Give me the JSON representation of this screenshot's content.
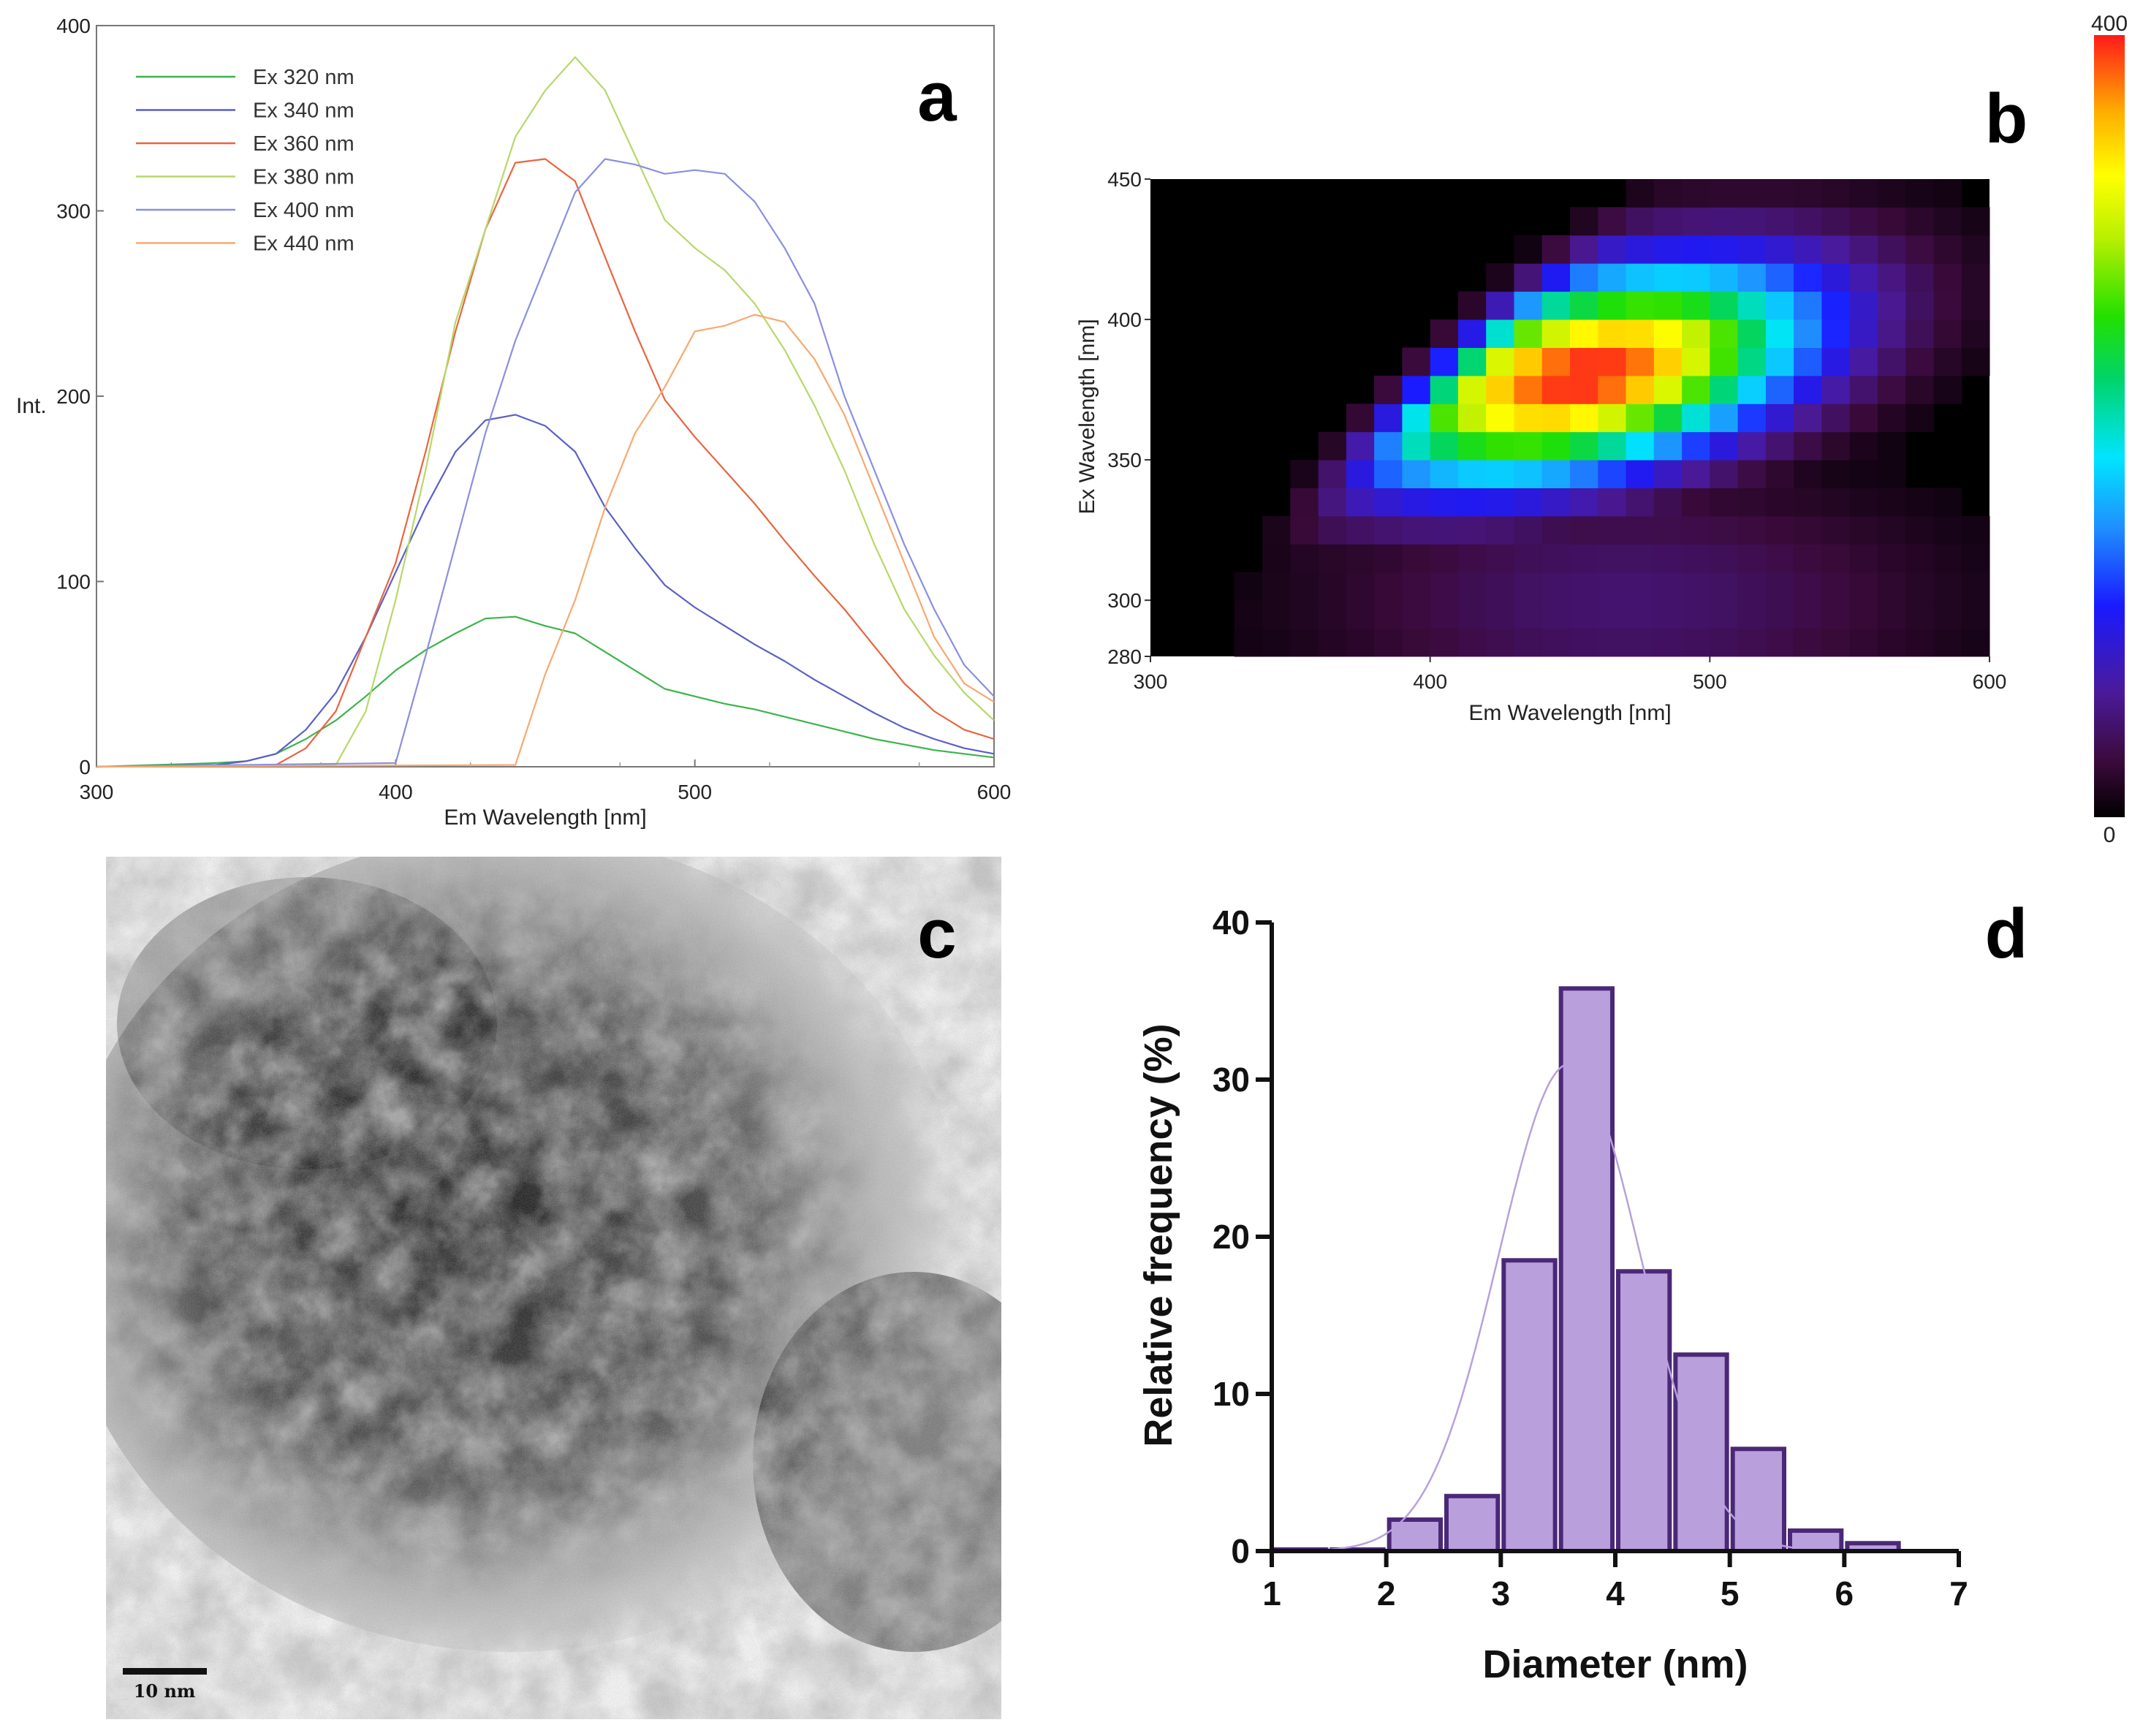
{
  "panels": {
    "a": "a",
    "b": "b",
    "c": "c",
    "d": "d"
  },
  "chart_data": [
    {
      "id": "a",
      "type": "line",
      "title": "",
      "xlabel": "Em Wavelength [nm]",
      "ylabel": "Int.",
      "xlim": [
        300,
        600
      ],
      "ylim": [
        0,
        400
      ],
      "xticks": [
        300,
        400,
        500,
        600
      ],
      "yticks": [
        0,
        100,
        200,
        300,
        400
      ],
      "legend_position": "top-left",
      "series": [
        {
          "name": "Ex 320 nm",
          "color": "#3cb44b",
          "x": [
            300,
            320,
            340,
            350,
            360,
            370,
            380,
            390,
            400,
            410,
            420,
            430,
            440,
            450,
            460,
            470,
            480,
            490,
            500,
            510,
            520,
            530,
            540,
            550,
            560,
            570,
            580,
            590,
            600
          ],
          "y": [
            0,
            1,
            2,
            3,
            7,
            15,
            25,
            38,
            52,
            63,
            72,
            80,
            81,
            76,
            72,
            62,
            52,
            42,
            38,
            34,
            31,
            27,
            23,
            19,
            15,
            12,
            9,
            7,
            5
          ]
        },
        {
          "name": "Ex 340 nm",
          "color": "#5b5fc7",
          "x": [
            300,
            340,
            350,
            360,
            370,
            380,
            390,
            400,
            410,
            420,
            430,
            440,
            450,
            460,
            470,
            480,
            490,
            500,
            510,
            520,
            530,
            540,
            550,
            560,
            570,
            580,
            590,
            600
          ],
          "y": [
            0,
            1,
            3,
            7,
            20,
            40,
            70,
            105,
            140,
            170,
            187,
            190,
            184,
            170,
            140,
            118,
            98,
            86,
            76,
            66,
            57,
            47,
            38,
            29,
            21,
            15,
            10,
            7
          ]
        },
        {
          "name": "Ex 360 nm",
          "color": "#e8653f",
          "x": [
            300,
            360,
            370,
            380,
            390,
            400,
            410,
            420,
            430,
            440,
            450,
            460,
            470,
            480,
            490,
            500,
            510,
            520,
            530,
            540,
            550,
            560,
            570,
            580,
            590,
            600
          ],
          "y": [
            0,
            1,
            10,
            30,
            70,
            110,
            170,
            235,
            290,
            326,
            328,
            316,
            275,
            235,
            198,
            178,
            160,
            142,
            122,
            103,
            85,
            65,
            45,
            30,
            20,
            15
          ]
        },
        {
          "name": "Ex 380 nm",
          "color": "#b7d86a",
          "x": [
            300,
            380,
            390,
            400,
            410,
            420,
            430,
            440,
            450,
            460,
            470,
            480,
            490,
            500,
            510,
            520,
            530,
            540,
            550,
            560,
            570,
            580,
            590,
            600
          ],
          "y": [
            0,
            1,
            30,
            90,
            160,
            240,
            290,
            340,
            365,
            383,
            365,
            330,
            295,
            280,
            268,
            250,
            225,
            195,
            160,
            120,
            85,
            60,
            40,
            25
          ]
        },
        {
          "name": "Ex 400 nm",
          "color": "#8a8fe0",
          "x": [
            300,
            400,
            410,
            420,
            430,
            440,
            450,
            460,
            470,
            480,
            490,
            500,
            510,
            520,
            530,
            540,
            550,
            560,
            570,
            580,
            590,
            600
          ],
          "y": [
            0,
            2,
            60,
            120,
            180,
            230,
            270,
            310,
            328,
            325,
            320,
            322,
            320,
            305,
            280,
            250,
            200,
            160,
            120,
            85,
            55,
            38
          ]
        },
        {
          "name": "Ex 440 nm",
          "color": "#f7a970",
          "x": [
            300,
            440,
            450,
            460,
            470,
            480,
            490,
            500,
            510,
            520,
            530,
            540,
            550,
            560,
            570,
            580,
            590,
            600
          ],
          "y": [
            0,
            1,
            50,
            90,
            140,
            180,
            205,
            235,
            238,
            244,
            240,
            220,
            190,
            150,
            110,
            70,
            45,
            35
          ]
        }
      ]
    },
    {
      "id": "b",
      "type": "heatmap",
      "title": "",
      "xlabel": "Em Wavelength [nm]",
      "ylabel": "Ex Wavelength [nm]",
      "xlim": [
        300,
        600
      ],
      "ylim": [
        280,
        450
      ],
      "xticks": [
        300,
        400,
        500,
        600
      ],
      "yticks": [
        280,
        300,
        350,
        400,
        450
      ],
      "colorbar": {
        "min": 0,
        "max": 400,
        "min_label": "0",
        "max_label": "400"
      },
      "em_step": 10,
      "ex_step": 10,
      "peak": {
        "em": 455,
        "ex": 380,
        "value": 400
      }
    },
    {
      "id": "d",
      "type": "bar",
      "title": "",
      "xlabel": "Diameter (nm)",
      "ylabel": "Relative frequency (%)",
      "xlim": [
        1,
        7
      ],
      "ylim": [
        0,
        40
      ],
      "xticks": [
        1,
        2,
        3,
        4,
        5,
        6,
        7
      ],
      "yticks": [
        0,
        10,
        20,
        30,
        40
      ],
      "bin_width": 0.5,
      "bar_color": "#b9a0dc",
      "edge_color": "#4b2877",
      "fit_color": "#b9a0dc",
      "bins": [
        1.0,
        1.5,
        2.0,
        2.5,
        3.0,
        3.5,
        4.0,
        4.5,
        5.0,
        5.5,
        6.0,
        6.5
      ],
      "values": [
        0.1,
        0.1,
        2.0,
        3.5,
        18.5,
        35.8,
        17.8,
        12.5,
        6.5,
        1.3,
        0.5,
        0.0
      ],
      "fit": {
        "type": "gaussian",
        "mean": 3.6,
        "sd": 0.62,
        "peak": 31
      }
    }
  ],
  "tem_image": {
    "scale_bar_label": "10 nm"
  }
}
